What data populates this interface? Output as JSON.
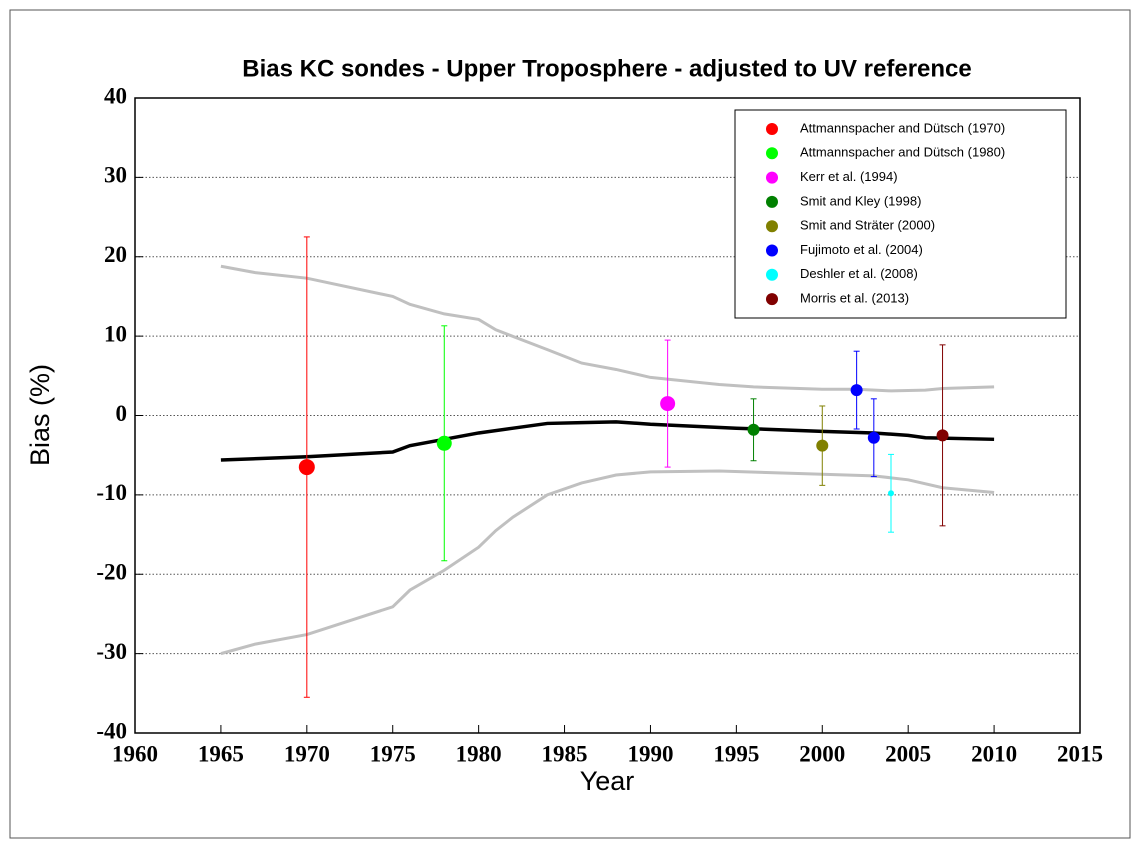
{
  "chart_data": {
    "type": "scatter",
    "title": "Bias KC sondes - Upper Troposphere - adjusted to UV reference",
    "xlabel": "Year",
    "ylabel": "Bias (%)",
    "xlim": [
      1960,
      2015
    ],
    "ylim": [
      -40,
      40
    ],
    "xticks": [
      1960,
      1965,
      1970,
      1975,
      1980,
      1985,
      1990,
      1995,
      2000,
      2005,
      2010,
      2015
    ],
    "yticks": [
      -40,
      -30,
      -20,
      -10,
      0,
      10,
      20,
      30,
      40
    ],
    "grid": true,
    "legend": "upper right",
    "series": [
      {
        "name": "Attmannspacher and Dütsch (1970)",
        "color": "#ff0000",
        "x": [
          1970
        ],
        "values": [
          -6.5
        ],
        "errors": [
          29
        ]
      },
      {
        "name": "Attmannspacher and Dütsch (1980)",
        "color": "#00ff00",
        "x": [
          1978
        ],
        "values": [
          -3.5
        ],
        "errors": [
          14.8
        ]
      },
      {
        "name": "Kerr et al. (1994)",
        "color": "#ff00ff",
        "x": [
          1991
        ],
        "values": [
          1.5
        ],
        "errors": [
          8
        ]
      },
      {
        "name": "Smit and Kley (1998)",
        "color": "#008000",
        "x": [
          1996
        ],
        "values": [
          -1.8
        ],
        "errors": [
          3.9
        ]
      },
      {
        "name": "Smit and Sträter (2000)",
        "color": "#808000",
        "x": [
          2000
        ],
        "values": [
          -3.8
        ],
        "errors": [
          5
        ]
      },
      {
        "name": "Fujimoto et al. (2004)",
        "color": "#0000ff",
        "x": [
          2002,
          2003
        ],
        "values": [
          3.2,
          -2.8
        ],
        "errors": [
          4.9,
          4.9
        ]
      },
      {
        "name": "Deshler et al. (2008)",
        "color": "#00ffff",
        "x": [
          2004
        ],
        "values": [
          -9.8
        ],
        "errors": [
          4.9
        ]
      },
      {
        "name": "Morris et al. (2013)",
        "color": "#800000",
        "x": [
          2007
        ],
        "values": [
          -2.5
        ],
        "errors": [
          11.4
        ]
      }
    ],
    "lines": [
      {
        "color": "#000000",
        "x": [
          1965,
          1970,
          1975,
          1976,
          1978,
          1980,
          1982,
          1984,
          1986,
          1988,
          1990,
          1995,
          2000,
          2003,
          2005,
          2006,
          2010
        ],
        "values": [
          -5.6,
          -5.2,
          -4.6,
          -3.8,
          -3.0,
          -2.2,
          -1.6,
          -1.0,
          -0.9,
          -0.8,
          -1.1,
          -1.6,
          -2.0,
          -2.2,
          -2.5,
          -2.8,
          -3.0
        ]
      },
      {
        "color": "#c0c0c0",
        "x": [
          1965,
          1967,
          1970,
          1975,
          1976,
          1978,
          1980,
          1981,
          1984,
          1986,
          1988,
          1990,
          1994,
          1996,
          2000,
          2002,
          2004,
          2006,
          2007,
          2010
        ],
        "values": [
          18.8,
          18.0,
          17.3,
          15.0,
          14.0,
          12.8,
          12.1,
          10.8,
          8.3,
          6.6,
          5.8,
          4.8,
          3.9,
          3.6,
          3.3,
          3.3,
          3.1,
          3.2,
          3.4,
          3.6
        ]
      },
      {
        "color": "#c0c0c0",
        "x": [
          1965,
          1967,
          1970,
          1975,
          1976,
          1978,
          1980,
          1981,
          1982,
          1984,
          1986,
          1988,
          1990,
          1994,
          2000,
          2003,
          2005,
          2007,
          2010
        ],
        "values": [
          -30.0,
          -28.8,
          -27.6,
          -24.1,
          -22.0,
          -19.5,
          -16.6,
          -14.5,
          -12.8,
          -10.0,
          -8.5,
          -7.5,
          -7.1,
          -7.0,
          -7.4,
          -7.6,
          -8.1,
          -9.1,
          -9.7
        ]
      }
    ]
  }
}
